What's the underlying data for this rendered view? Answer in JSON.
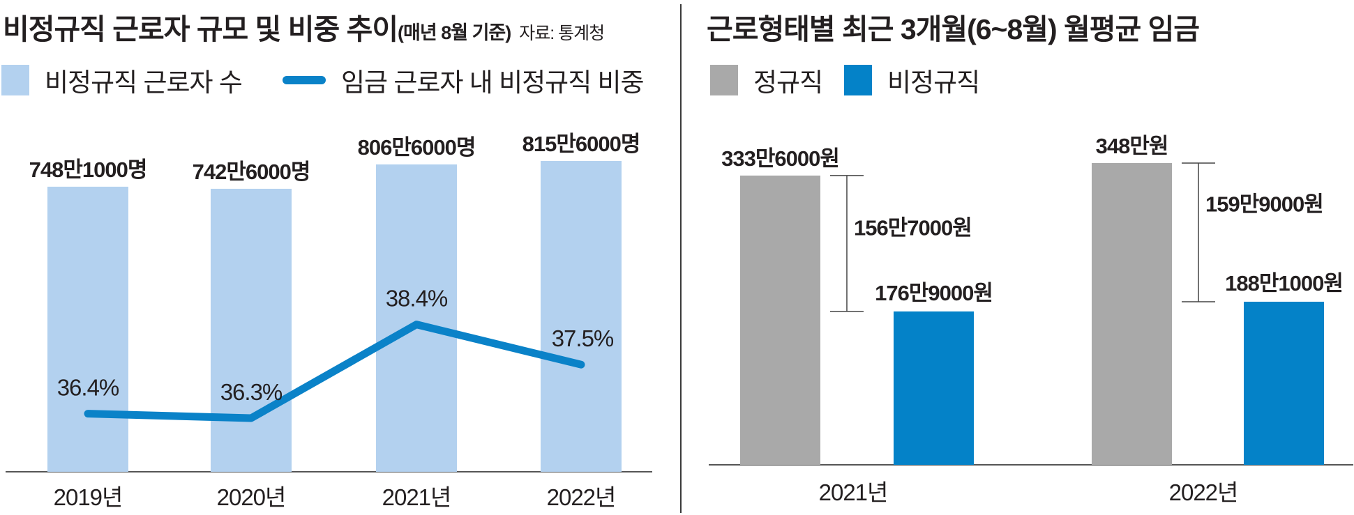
{
  "left": {
    "title": "비정규직 근로자 규모 및 비중 추이",
    "subtitle": "(매년 8월 기준)",
    "source": "자료: 통계청",
    "legend": [
      {
        "label": "비정규직 근로자 수",
        "color": "#b3d1ef",
        "kind": "bar"
      },
      {
        "label": "임금 근로자 내 비정규직 비중",
        "color": "#0a82c8",
        "kind": "line"
      }
    ]
  },
  "right": {
    "title": "근로형태별 최근 3개월(6~8월) 월평균 임금",
    "legend": [
      {
        "label": "정규직",
        "color": "#a9a9a9"
      },
      {
        "label": "비정규직",
        "color": "#0482c8"
      }
    ]
  },
  "chart_data": [
    {
      "type": "bar",
      "title": "비정규직 근로자 규모 및 비중 추이",
      "categories": [
        "2019년",
        "2020년",
        "2021년",
        "2022년"
      ],
      "series": [
        {
          "name": "비정규직 근로자 수",
          "unit": "명",
          "color": "#b3d1ef",
          "values": [
            7481000,
            7426000,
            8066000,
            8156000
          ],
          "labels": [
            "748만1000명",
            "742만6000명",
            "806만6000명",
            "815만6000명"
          ]
        },
        {
          "name": "임금 근로자 내 비정규직 비중",
          "type": "line",
          "unit": "%",
          "color": "#0a82c8",
          "values": [
            36.4,
            36.3,
            38.4,
            37.5
          ],
          "labels": [
            "36.4%",
            "36.3%",
            "38.4%",
            "37.5%"
          ]
        }
      ]
    },
    {
      "type": "bar",
      "title": "근로형태별 최근 3개월(6~8월) 월평균 임금",
      "categories": [
        "2021년",
        "2022년"
      ],
      "series": [
        {
          "name": "정규직",
          "unit": "원",
          "color": "#a9a9a9",
          "values": [
            3336000,
            3480000
          ],
          "labels": [
            "333만6000원",
            "348만원"
          ]
        },
        {
          "name": "비정규직",
          "unit": "원",
          "color": "#0482c8",
          "values": [
            1769000,
            1881000
          ],
          "labels": [
            "176만9000원",
            "188만1000원"
          ]
        }
      ],
      "gap_annotations": [
        {
          "category": "2021년",
          "value": 1567000,
          "label": "156만7000원"
        },
        {
          "category": "2022년",
          "value": 1599000,
          "label": "159만9000원"
        }
      ]
    }
  ]
}
